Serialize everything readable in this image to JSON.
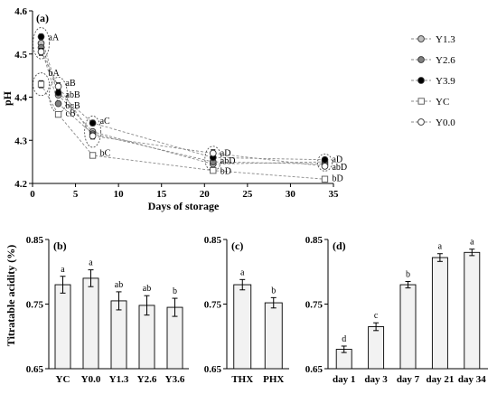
{
  "chart_data": [
    {
      "id": "a",
      "type": "line",
      "panel_label": "(a)",
      "xlabel": "Days of storage",
      "ylabel": "pH",
      "xlim": [
        0,
        35
      ],
      "ylim": [
        4.2,
        4.6
      ],
      "xticks": [
        "0",
        "5",
        "10",
        "15",
        "20",
        "25",
        "30",
        "35"
      ],
      "yticks": [
        "4.2",
        "4.3",
        "4.4",
        "4.5",
        "4.6"
      ],
      "x": [
        1,
        3,
        7,
        21,
        34
      ],
      "series": [
        {
          "name": "Y1.3",
          "marker": "circle",
          "fill": "#bfbfbf",
          "values": [
            4.525,
            4.405,
            4.32,
            4.245,
            4.25
          ],
          "errors": [
            0.005,
            0.005,
            0.005,
            0.005,
            0.005
          ]
        },
        {
          "name": "Y2.6",
          "marker": "circle",
          "fill": "#7f7f7f",
          "values": [
            4.515,
            4.385,
            4.315,
            4.25,
            4.245
          ],
          "errors": [
            0.005,
            0.005,
            0.005,
            0.005,
            0.005
          ]
        },
        {
          "name": "Y3.9",
          "marker": "circle",
          "fill": "#000000",
          "values": [
            4.54,
            4.41,
            4.34,
            4.26,
            4.255
          ],
          "errors": [
            0.006,
            0.005,
            0.006,
            0.005,
            0.005
          ]
        },
        {
          "name": "YC",
          "marker": "square",
          "fill": "#ffffff",
          "values": [
            4.43,
            4.36,
            4.265,
            4.23,
            4.21
          ],
          "errors": [
            0.008,
            0.006,
            0.006,
            0.005,
            0.005
          ]
        },
        {
          "name": "Y0.0",
          "marker": "circle",
          "fill": "#ffffff",
          "values": [
            4.505,
            4.425,
            4.31,
            4.27,
            4.24
          ],
          "errors": [
            0.008,
            0.008,
            0.007,
            0.008,
            0.005
          ]
        }
      ],
      "annotations": [
        {
          "x": 1,
          "y": 4.538,
          "text": "aA"
        },
        {
          "x": 1,
          "y": 4.455,
          "text": "bA"
        },
        {
          "x": 3,
          "y": 4.432,
          "text": "aB"
        },
        {
          "x": 3,
          "y": 4.405,
          "text": "abB"
        },
        {
          "x": 3,
          "y": 4.38,
          "text": "bcB"
        },
        {
          "x": 3,
          "y": 4.362,
          "text": "cB"
        },
        {
          "x": 7,
          "y": 4.345,
          "text": "aC"
        },
        {
          "x": 7,
          "y": 4.27,
          "text": "bC"
        },
        {
          "x": 34,
          "y": 4.255,
          "text": "aD"
        },
        {
          "x": 34,
          "y": 4.238,
          "text": "abD"
        },
        {
          "x": 34,
          "y": 4.212,
          "text": "bD"
        },
        {
          "x": 21,
          "y": 4.27,
          "text": "aD"
        },
        {
          "x": 21,
          "y": 4.252,
          "text": "abD"
        },
        {
          "x": 21,
          "y": 4.228,
          "text": "bD"
        }
      ],
      "legend_position": "right"
    },
    {
      "id": "b",
      "type": "bar",
      "panel_label": "(b)",
      "ylabel": "Titratable acidity (%)",
      "ylim": [
        0.65,
        0.85
      ],
      "yticks": [
        "0.65",
        "0.75",
        "0.85"
      ],
      "categories": [
        "YC",
        "Y0.0",
        "Y1.3",
        "Y2.6",
        "Y3.6"
      ],
      "values": [
        0.78,
        0.79,
        0.755,
        0.748,
        0.745
      ],
      "errors": [
        0.013,
        0.013,
        0.014,
        0.015,
        0.014
      ],
      "labels": [
        "a",
        "a",
        "ab",
        "ab",
        "b"
      ]
    },
    {
      "id": "c",
      "type": "bar",
      "panel_label": "(c)",
      "ylim": [
        0.65,
        0.85
      ],
      "yticks": [
        "0.65",
        "0.75",
        "0.85"
      ],
      "categories": [
        "THX",
        "PHX"
      ],
      "values": [
        0.78,
        0.752
      ],
      "errors": [
        0.008,
        0.008
      ],
      "labels": [
        "a",
        "b"
      ]
    },
    {
      "id": "d",
      "type": "bar",
      "panel_label": "(d)",
      "ylim": [
        0.65,
        0.85
      ],
      "yticks": [
        "0.65",
        "0.75",
        "0.85"
      ],
      "categories": [
        "day 1",
        "day 3",
        "day 7",
        "day 21",
        "day 34"
      ],
      "values": [
        0.68,
        0.715,
        0.78,
        0.822,
        0.83
      ],
      "errors": [
        0.005,
        0.006,
        0.005,
        0.006,
        0.005
      ],
      "labels": [
        "d",
        "c",
        "b",
        "a",
        "a"
      ]
    }
  ]
}
